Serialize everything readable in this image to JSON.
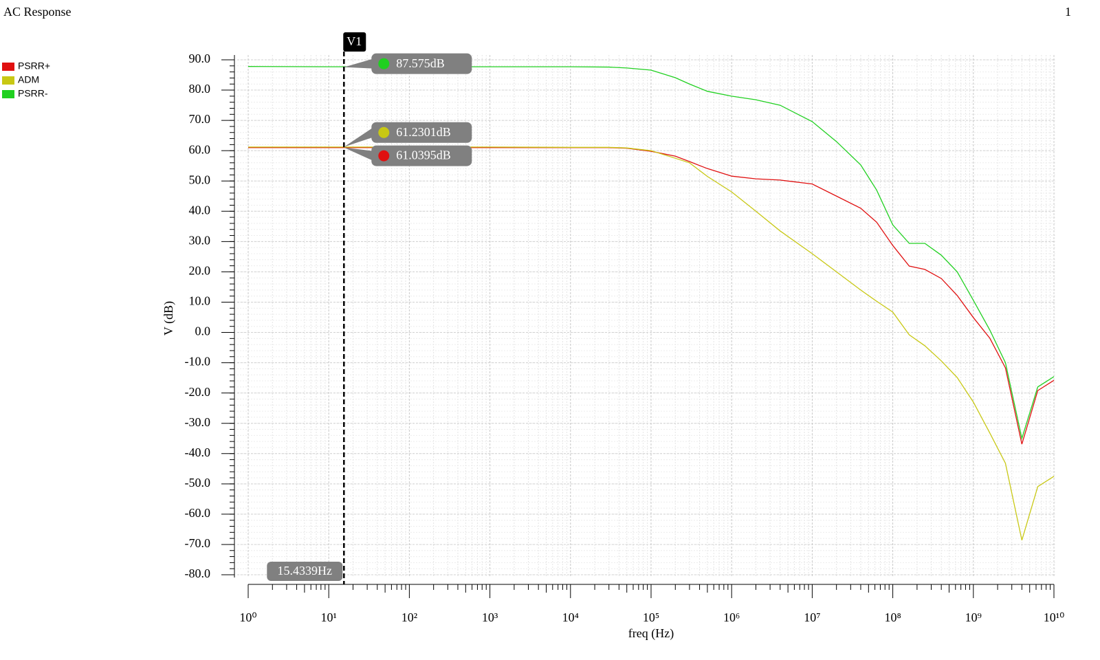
{
  "window_index": "1",
  "chart_data": {
    "type": "line",
    "title": "AC Response",
    "x_label": "freq (Hz)",
    "y_label": "V (dB)",
    "x_scale": "log",
    "grid": true,
    "xlim": [
      1,
      10000000000
    ],
    "ylim": [
      -80,
      90
    ],
    "xticks": [
      {
        "value": 1,
        "label": "10⁰"
      },
      {
        "value": 10,
        "label": "10¹"
      },
      {
        "value": 100,
        "label": "10²"
      },
      {
        "value": 1000,
        "label": "10³"
      },
      {
        "value": 10000,
        "label": "10⁴"
      },
      {
        "value": 100000,
        "label": "10⁵"
      },
      {
        "value": 1000000,
        "label": "10⁶"
      },
      {
        "value": 10000000,
        "label": "10⁷"
      },
      {
        "value": 100000000,
        "label": "10⁸"
      },
      {
        "value": 1000000000,
        "label": "10⁹"
      },
      {
        "value": 10000000000,
        "label": "10¹⁰"
      }
    ],
    "yticks": [
      {
        "value": 90,
        "label": "90.0"
      },
      {
        "value": 80,
        "label": "80.0"
      },
      {
        "value": 70,
        "label": "70.0"
      },
      {
        "value": 60,
        "label": "60.0"
      },
      {
        "value": 50,
        "label": "50.0"
      },
      {
        "value": 40,
        "label": "40.0"
      },
      {
        "value": 30,
        "label": "30.0"
      },
      {
        "value": 20,
        "label": "20.0"
      },
      {
        "value": 10,
        "label": "10.0"
      },
      {
        "value": 0,
        "label": "0.0"
      },
      {
        "value": -10,
        "label": "-10.0"
      },
      {
        "value": -20,
        "label": "-20.0"
      },
      {
        "value": -30,
        "label": "-30.0"
      },
      {
        "value": -40,
        "label": "-40.0"
      },
      {
        "value": -50,
        "label": "-50.0"
      },
      {
        "value": -60,
        "label": "-60.0"
      },
      {
        "value": -70,
        "label": "-70.0"
      },
      {
        "value": -80,
        "label": "-80.0"
      }
    ],
    "x": [
      1,
      10,
      100,
      1000,
      10000,
      30000,
      50000,
      100000,
      200000,
      300000,
      500000,
      1000000,
      2000000,
      4000000,
      10000000,
      20000000,
      40000000,
      63000000,
      100000000,
      160000000,
      250000000,
      400000000,
      630000000,
      1000000000,
      1600000000,
      2500000000,
      4000000000,
      6300000000,
      10000000000
    ],
    "series": [
      {
        "name": "PSRR+",
        "color": "#e01010",
        "cursor_value": 61.0395,
        "cursor_label": "61.0395dB",
        "values": [
          61.0,
          61.0,
          61.0,
          61.0,
          61.0,
          61.0,
          60.8,
          59.8,
          58.2,
          56.4,
          54.1,
          51.6,
          50.7,
          50.3,
          49.0,
          45.0,
          41.0,
          36.4,
          28.7,
          21.9,
          20.8,
          17.8,
          12.2,
          4.9,
          -1.9,
          -11.7,
          -36.9,
          -19.2,
          -15.8
        ]
      },
      {
        "name": "ADM",
        "color": "#c8c814",
        "cursor_value": 61.2301,
        "cursor_label": "61.2301dB",
        "values": [
          61.2,
          61.2,
          61.2,
          61.2,
          61.1,
          61.1,
          60.9,
          60.0,
          57.5,
          56.0,
          51.5,
          46.4,
          40.0,
          33.5,
          26.0,
          20.0,
          14.0,
          10.3,
          6.7,
          -0.8,
          -4.4,
          -9.4,
          -14.9,
          -23.0,
          -33.2,
          -43.2,
          -68.6,
          -50.9,
          -47.5
        ]
      },
      {
        "name": "PSRR-",
        "color": "#20d020",
        "cursor_value": 87.575,
        "cursor_label": "87.575dB",
        "values": [
          87.8,
          87.7,
          87.7,
          87.7,
          87.7,
          87.6,
          87.3,
          86.6,
          84.1,
          82.0,
          79.6,
          78.0,
          76.8,
          75.0,
          69.6,
          63.0,
          55.3,
          47.0,
          35.5,
          29.4,
          29.4,
          25.5,
          20.0,
          10.6,
          0.8,
          -10.0,
          -35.0,
          -18.0,
          -14.6
        ]
      }
    ],
    "cursor": {
      "name": "V1",
      "x": 15.4339,
      "x_label": "15.4339Hz"
    }
  }
}
